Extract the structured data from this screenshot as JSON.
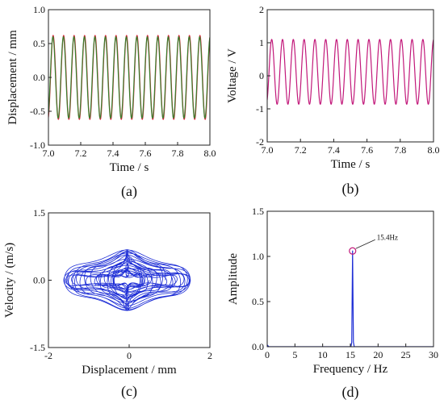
{
  "chart_data": [
    {
      "id": "a",
      "type": "line",
      "panel_label": "(a)",
      "xlabel": "Time / s",
      "ylabel": "Displacement / mm",
      "xlim": [
        7.0,
        8.0
      ],
      "ylim": [
        -1.0,
        1.0
      ],
      "xticks": [
        7.0,
        7.2,
        7.4,
        7.6,
        7.8,
        8.0
      ],
      "yticks": [
        -1.0,
        -0.5,
        0.0,
        0.5,
        1.0
      ],
      "tick_format": 1,
      "series": [
        {
          "color": "#d4283a",
          "frequency_hz": 15.4,
          "amplitude": 0.62,
          "offset": 0.0,
          "phase": 0.0,
          "x_range": [
            7.0,
            8.0
          ]
        },
        {
          "color": "#3a7d2c",
          "frequency_hz": 15.4,
          "amplitude": 0.6,
          "offset": 0.0,
          "phase": 0.15,
          "x_range": [
            7.0,
            8.0
          ]
        }
      ]
    },
    {
      "id": "b",
      "type": "line",
      "panel_label": "(b)",
      "xlabel": "Time / s",
      "ylabel": "Voltage / V",
      "xlim": [
        7.0,
        8.0
      ],
      "ylim": [
        -2.0,
        2.0
      ],
      "xticks": [
        7.0,
        7.2,
        7.4,
        7.6,
        7.8,
        8.0
      ],
      "yticks": [
        -2,
        -1,
        0,
        1,
        2
      ],
      "tick_format": 0,
      "x_tick_format": 1,
      "series": [
        {
          "color": "#c2187a",
          "frequency_hz": 15.4,
          "amplitude": 0.98,
          "offset": 0.12,
          "phase": 0.2,
          "x_range": [
            7.0,
            8.0
          ]
        }
      ]
    },
    {
      "id": "c",
      "type": "scatter",
      "panel_label": "(c)",
      "xlabel": "Displacement / mm",
      "ylabel": "Velocity / (m/s)",
      "xlim": [
        -2,
        2
      ],
      "ylim": [
        -1.5,
        1.5
      ],
      "xticks": [
        -2,
        0,
        2
      ],
      "yticks": [
        -1.5,
        0.0,
        1.5
      ],
      "tick_format": 1,
      "x_tick_format": 0,
      "series": [
        {
          "color": "#1f2fd6",
          "kind": "phase_portrait",
          "x_amplitude": [
            0.2,
            1.45
          ],
          "y_amplitude": [
            0.15,
            0.62
          ],
          "loops": 26
        }
      ]
    },
    {
      "id": "d",
      "type": "line",
      "panel_label": "(d)",
      "xlabel": "Frequency / Hz",
      "ylabel": "Amplitude",
      "xlim": [
        0,
        30
      ],
      "ylim": [
        0.0,
        1.5
      ],
      "xticks": [
        0,
        5,
        10,
        15,
        20,
        25,
        30
      ],
      "yticks": [
        0.0,
        0.5,
        1.0,
        1.5
      ],
      "tick_format": 1,
      "x_tick_format": 0,
      "series": [
        {
          "color": "#1f2fd6",
          "x": [
            0,
            0.3,
            15.1,
            15.25,
            15.4,
            15.55,
            15.7,
            30
          ],
          "y": [
            0.02,
            0.0,
            0.0,
            0.05,
            1.06,
            0.05,
            0.0,
            0.0
          ]
        }
      ],
      "annotations": [
        {
          "text": "15.4Hz",
          "x": 15.4,
          "y": 1.06,
          "marker_color": "#c2187a"
        }
      ]
    }
  ]
}
